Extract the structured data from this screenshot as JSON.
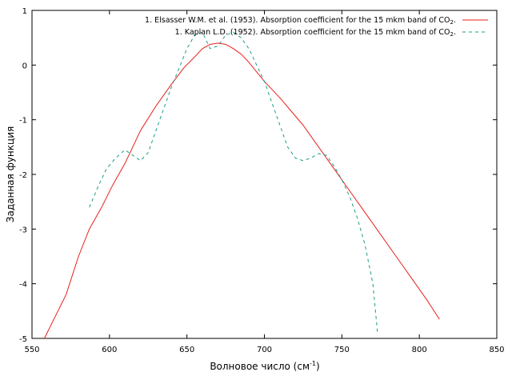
{
  "chart_data": {
    "type": "line",
    "title": "",
    "xlabel": "Волновое число (см",
    "xlabel_sup": "-1",
    "xlabel_tail": ")",
    "ylabel": "Заданная функция",
    "xlim": [
      550,
      850
    ],
    "ylim": [
      -5,
      1
    ],
    "xticks": [
      550,
      600,
      650,
      700,
      750,
      800,
      850
    ],
    "yticks": [
      -5,
      -4,
      -3,
      -2,
      -1,
      0,
      1
    ],
    "grid": false,
    "legend_position": "top-right",
    "series": [
      {
        "name": "1. Elsasser W.M. et al. (1953). Absorption coefficient for the 15 mkm band of CO",
        "name_sub": "2",
        "name_tail": ".",
        "color": "#e8201c",
        "style": "solid",
        "x": [
          558,
          565,
          572,
          580,
          587,
          595,
          602,
          610,
          620,
          630,
          640,
          648,
          655,
          660,
          665,
          670,
          675,
          680,
          685,
          690,
          700,
          710,
          716,
          725,
          735,
          745,
          755,
          765,
          775,
          785,
          795,
          805,
          813
        ],
        "y": [
          -5.0,
          -4.6,
          -4.2,
          -3.5,
          -3.0,
          -2.6,
          -2.2,
          -1.8,
          -1.2,
          -0.75,
          -0.35,
          -0.05,
          0.15,
          0.3,
          0.38,
          0.4,
          0.38,
          0.3,
          0.2,
          0.05,
          -0.3,
          -0.6,
          -0.8,
          -1.1,
          -1.5,
          -1.9,
          -2.3,
          -2.7,
          -3.1,
          -3.5,
          -3.9,
          -4.3,
          -4.65
        ]
      },
      {
        "name": "1. Kaplan L.D. (1952). Absorption coefficient for the 15 mkm band of CO",
        "name_sub": "2",
        "name_tail": ".",
        "color": "#1a9c8a",
        "style": "dashed",
        "x": [
          587,
          593,
          598,
          604,
          610,
          615,
          620,
          625,
          630,
          635,
          640,
          645,
          650,
          655,
          660,
          665,
          670,
          675,
          680,
          685,
          690,
          695,
          700,
          705,
          710,
          715,
          720,
          725,
          730,
          735,
          740,
          745,
          750,
          755,
          760,
          765,
          770,
          773
        ],
        "y": [
          -2.6,
          -2.2,
          -1.9,
          -1.7,
          -1.55,
          -1.65,
          -1.75,
          -1.6,
          -1.2,
          -0.8,
          -0.4,
          -0.05,
          0.3,
          0.55,
          0.6,
          0.3,
          0.35,
          0.55,
          0.6,
          0.5,
          0.3,
          0.0,
          -0.3,
          -0.7,
          -1.1,
          -1.5,
          -1.7,
          -1.75,
          -1.7,
          -1.62,
          -1.65,
          -1.85,
          -2.1,
          -2.4,
          -2.8,
          -3.3,
          -4.0,
          -4.9
        ]
      }
    ]
  }
}
